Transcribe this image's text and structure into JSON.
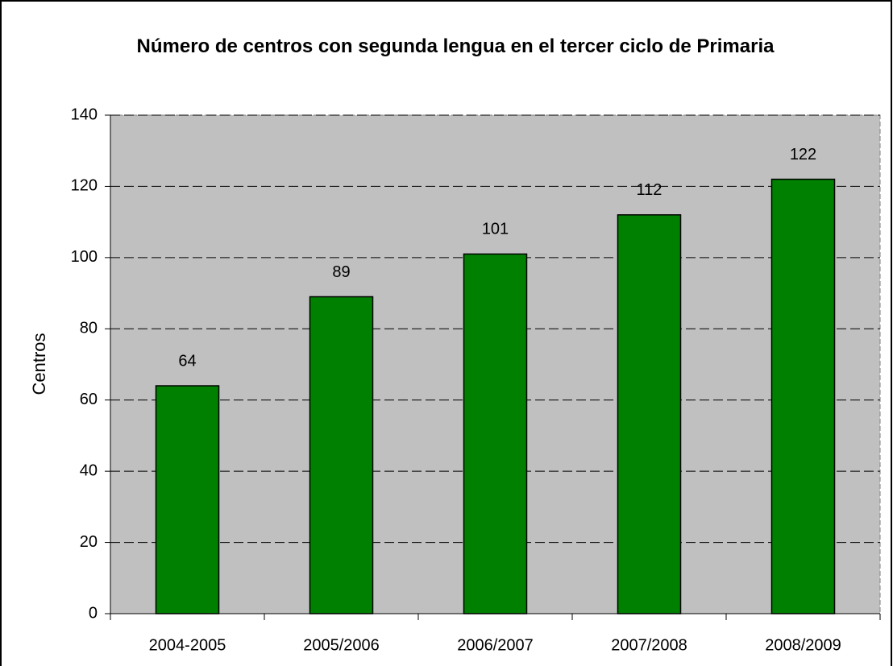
{
  "chart_data": {
    "type": "bar",
    "title": "Número de centros con segunda lengua en el tercer ciclo de Primaria",
    "y_label": "Centros",
    "categories": [
      "2004-2005",
      "2005/2006",
      "2006/2007",
      "2007/2008",
      "2008/2009"
    ],
    "values": [
      64,
      89,
      101,
      112,
      122
    ],
    "color": "#008000",
    "ylim": [
      0,
      140
    ],
    "yticks": [
      0,
      20,
      40,
      60,
      80,
      100,
      120,
      140
    ],
    "grid": true
  }
}
